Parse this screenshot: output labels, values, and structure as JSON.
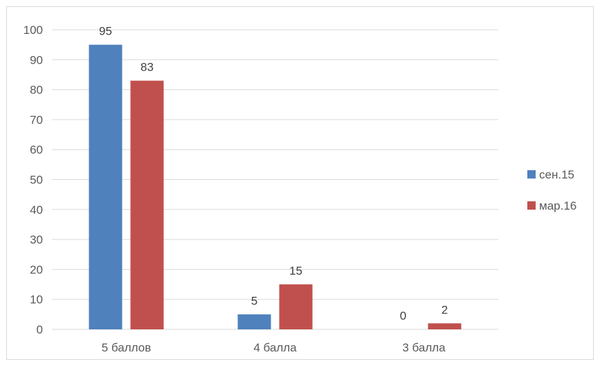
{
  "chart_data": {
    "type": "bar",
    "categories": [
      "5 баллов",
      "4 балла",
      "3  балла"
    ],
    "series": [
      {
        "name": "сен.15",
        "values": [
          95,
          5,
          0
        ],
        "color": "#4f81bd"
      },
      {
        "name": "мар.16",
        "values": [
          83,
          15,
          2
        ],
        "color": "#c0504d"
      }
    ],
    "ylim": [
      0,
      100
    ],
    "yticks": [
      0,
      10,
      20,
      30,
      40,
      50,
      60,
      70,
      80,
      90,
      100
    ],
    "grid": true,
    "legend_position": "right",
    "title": "",
    "xlabel": "",
    "ylabel": ""
  }
}
